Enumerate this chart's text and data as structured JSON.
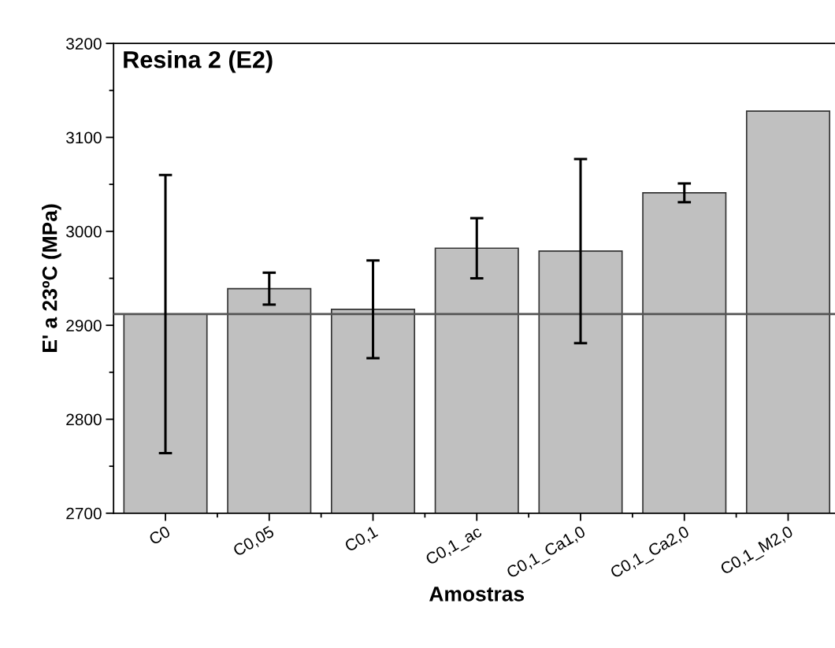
{
  "chart_data": {
    "type": "bar",
    "title": "Resina 2 (E2)",
    "xlabel": "Amostras",
    "ylabel": "E' a 23ºC (MPa)",
    "categories": [
      "C0",
      "C0,05",
      "C0,1",
      "C0,1_ac",
      "C0,1_Ca1,0",
      "C0,1_Ca2,0",
      "C0,1_M2,0"
    ],
    "values": [
      2912,
      2939,
      2917,
      2982,
      2979,
      3041,
      3128
    ],
    "errors": [
      148,
      17,
      52,
      32,
      98,
      10,
      null
    ],
    "color": "#c0c0c0",
    "ylim": [
      2700,
      3200
    ],
    "yticks": [
      2700,
      {
        "value": 2750,
        "label": null
      },
      2800,
      {
        "value": 2850,
        "label": null
      },
      2900,
      {
        "value": 2950,
        "label": null
      },
      3000,
      {
        "value": 3050,
        "label": null
      },
      3100,
      {
        "value": 3150,
        "label": null
      },
      3200
    ],
    "ref_lines": [
      {
        "axis": "y",
        "value": 2912,
        "color": "#555555"
      }
    ],
    "grid": false
  }
}
